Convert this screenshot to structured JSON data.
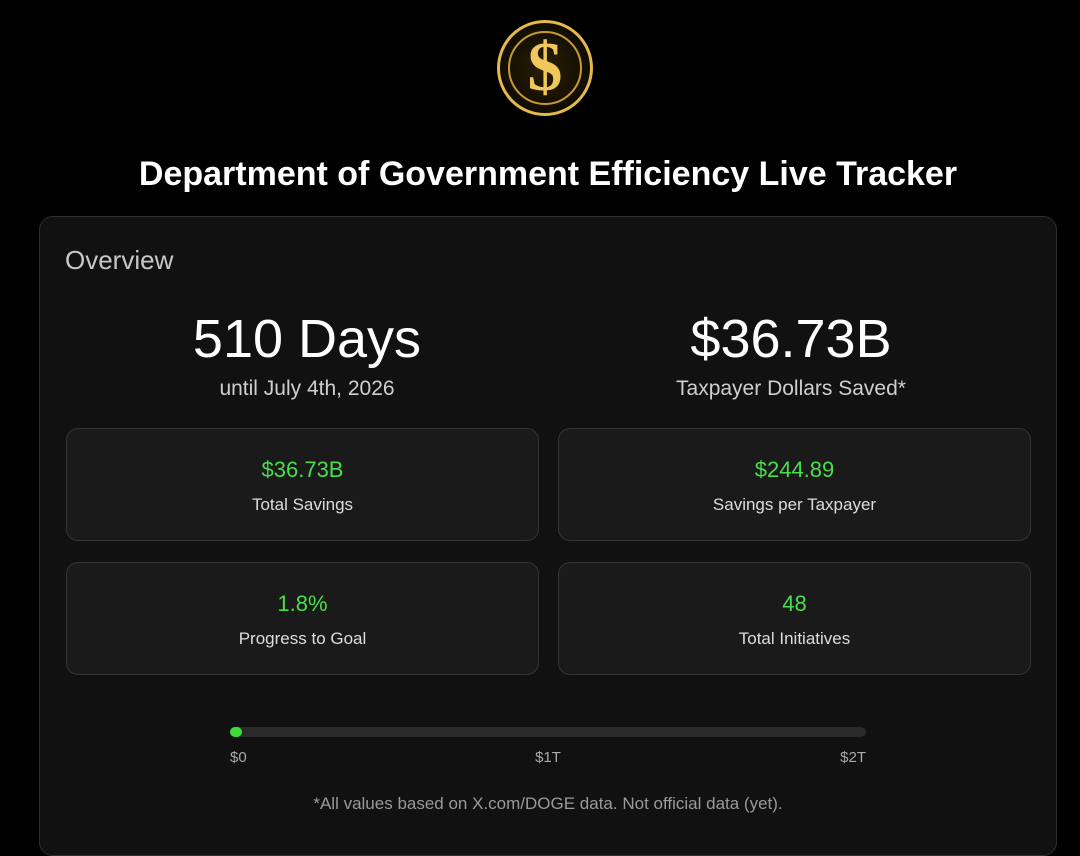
{
  "logo": "$",
  "title": "Department of Government Efficiency Live Tracker",
  "overview": {
    "heading": "Overview",
    "countdown": {
      "value": "510 Days",
      "caption": "until July 4th, 2026"
    },
    "headline": {
      "value": "$36.73B",
      "caption": "Taxpayer Dollars Saved*"
    },
    "stats": [
      {
        "value": {
          "value": 36730000000,
          "label": "$36.73B"
        },
        "label": "Total Savings"
      },
      {
        "value": "$244.89",
        "label": "Savings per Taxpayer"
      },
      {
        "value": "1.8%",
        "label": "Progress to Goal"
      },
      {
        "value": "48",
        "label": "Total Initiatives"
      }
    ],
    "progress": {
      "range": [
        0,
        2000000000000
      ],
      "ticks": [
        {
          "value": 0,
          "label": "$0"
        },
        {
          "value": 1000000000000,
          "label": "$1T"
        },
        {
          "value": 2000000000000,
          "label": "$2T"
        }
      ]
    },
    "footnote": "*All values based on X.com/DOGE data. Not official data (yet)."
  }
}
